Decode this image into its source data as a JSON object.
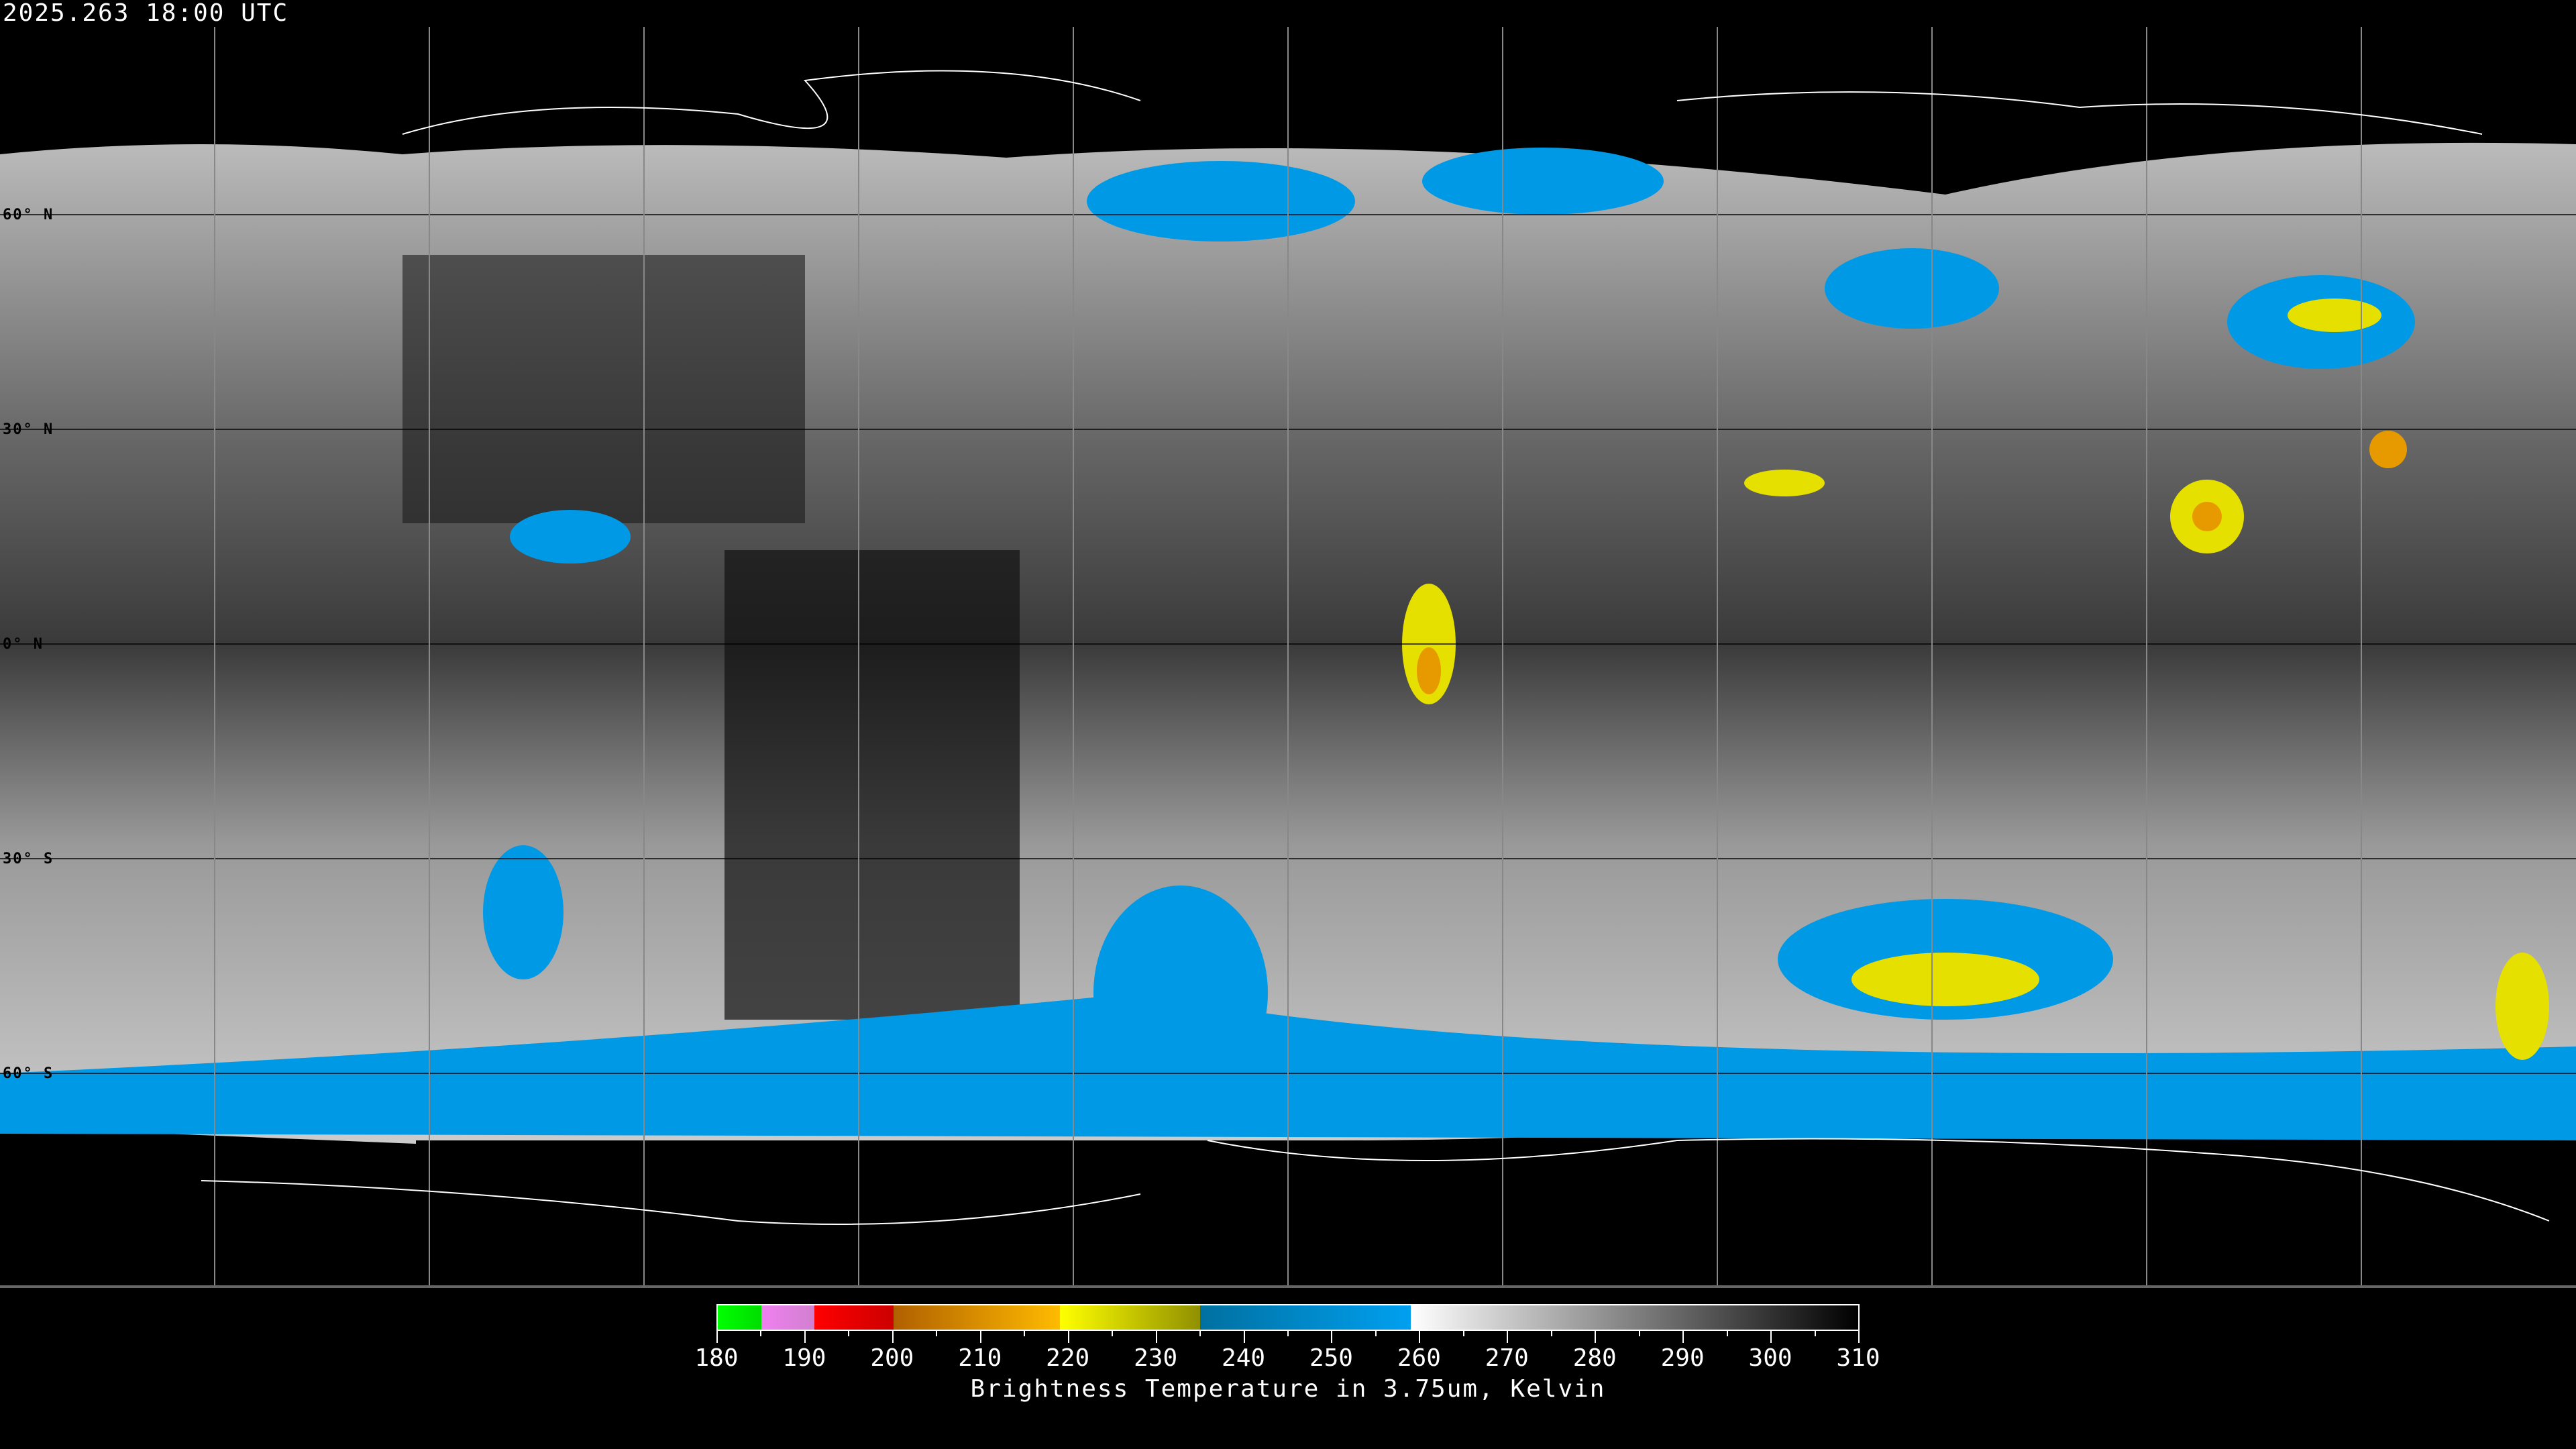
{
  "header": {
    "timestamp": "2025.263 18:00 UTC"
  },
  "map": {
    "projection": "equirectangular",
    "lat_labels": [
      "60° N",
      "30° N",
      "0° N",
      "30° S",
      "60° S"
    ],
    "grid_spacing_degrees": 30,
    "colors": {
      "cold_cloud_blue": "#0099e6",
      "yellow": "#e6e000",
      "orange": "#e69a00",
      "background": "#000000"
    }
  },
  "colorbar": {
    "min": 180,
    "max": 310,
    "tick_labels": [
      "180",
      "190",
      "200",
      "210",
      "220",
      "230",
      "240",
      "250",
      "260",
      "270",
      "280",
      "290",
      "300",
      "310"
    ],
    "title": "Brightness Temperature in 3.75um, Kelvin",
    "segments": [
      {
        "from": 180,
        "to": 185,
        "c1": "#00ff00",
        "c2": "#00dd00"
      },
      {
        "from": 185,
        "to": 191,
        "c1": "#f080f0",
        "c2": "#d080d0"
      },
      {
        "from": 191,
        "to": 200,
        "c1": "#ff0000",
        "c2": "#cc0000"
      },
      {
        "from": 200,
        "to": 219,
        "c1": "#b06000",
        "c2": "#ffbb00"
      },
      {
        "from": 219,
        "to": 235,
        "c1": "#ffff00",
        "c2": "#909000"
      },
      {
        "from": 235,
        "to": 259,
        "c1": "#0070a0",
        "c2": "#00a0f0"
      },
      {
        "from": 259,
        "to": 310,
        "c1": "#ffffff",
        "c2": "#000000"
      }
    ]
  }
}
